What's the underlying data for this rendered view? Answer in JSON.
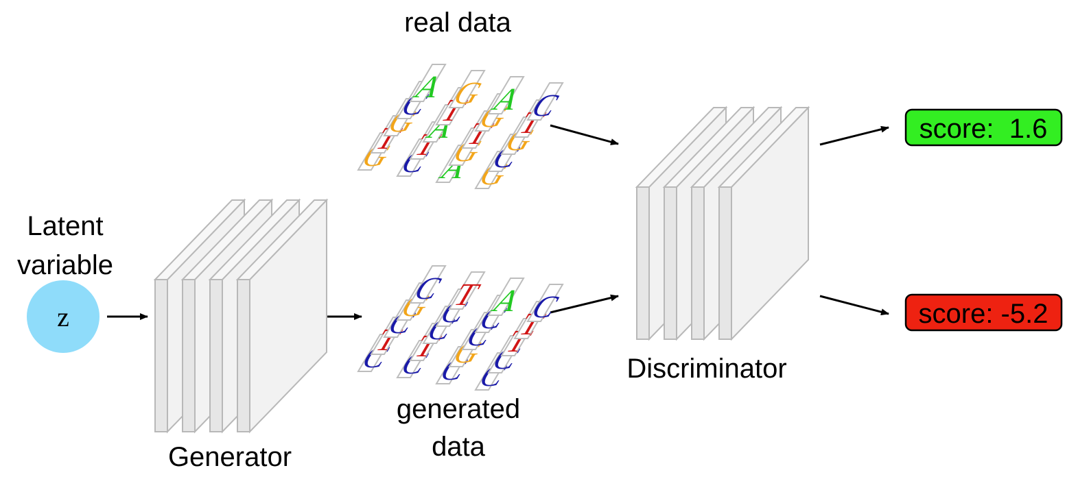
{
  "labels": {
    "latent_line1": "Latent",
    "latent_line2": "variable",
    "z": "z",
    "generator": "Generator",
    "discriminator": "Discriminator",
    "real_data": "real data",
    "generated_line1": "generated",
    "generated_line2": "data"
  },
  "real_sequences": [
    "GTGCA",
    "CTATG",
    "AGTGA",
    "GCGTC"
  ],
  "generated_sequences": [
    "CTCGC",
    "CTCCT",
    "CGCCA",
    "CCTTC"
  ],
  "nucleotide_colors": {
    "A": "#22c922",
    "C": "#1a1aa8",
    "G": "#f2a51a",
    "T": "#d11515"
  },
  "scores": [
    {
      "text": "score:  1.6",
      "color": "#33ee22"
    },
    {
      "text": "score: -5.2",
      "color": "#ee2211"
    }
  ],
  "latent_color": "#8fdcfa"
}
